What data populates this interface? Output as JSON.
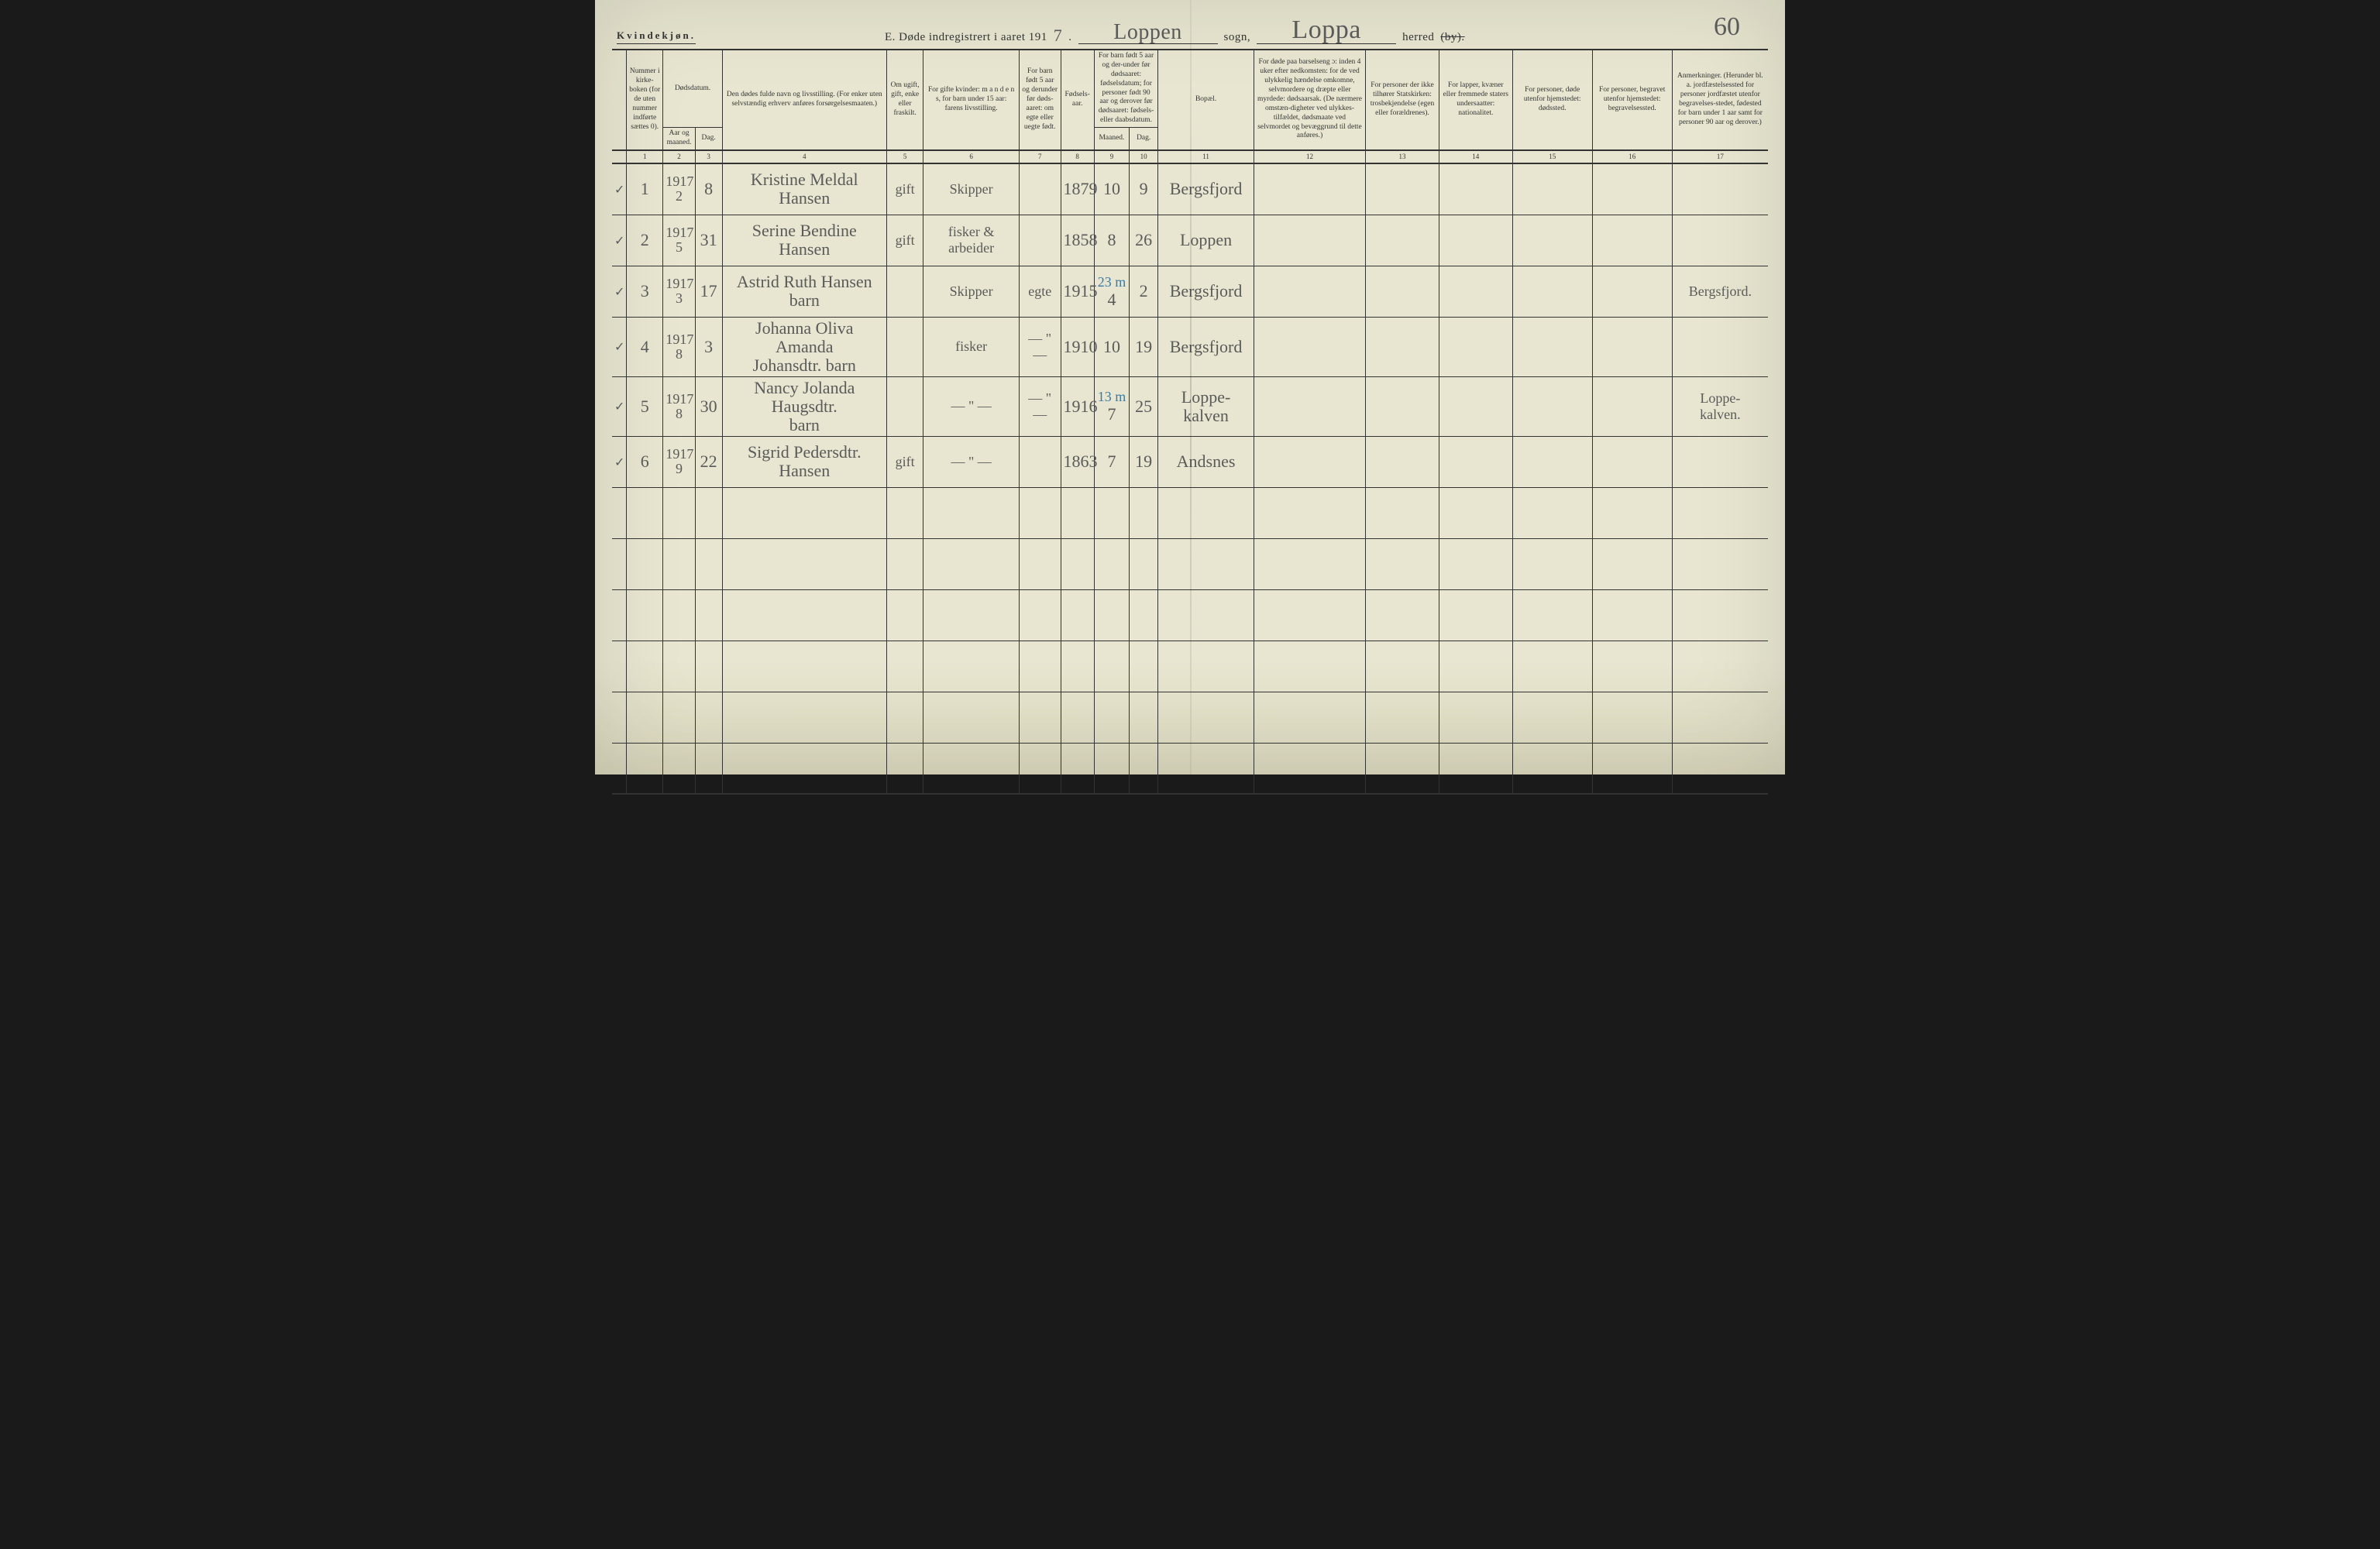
{
  "page": {
    "gender_heading": "Kvindekjøn.",
    "title_prefix": "E.  Døde indregistrert i aaret 191",
    "year_suffix_hw": "7",
    "period": ".",
    "sogn_label": "sogn,",
    "herred_label": "herred",
    "by_struck": "(by).",
    "sogn_value_hw": "Loppen",
    "herred_value_hw": "Loppa",
    "page_number_hw": "60",
    "background_color": "#e8e6d0",
    "rule_color": "#333333",
    "handwriting_color": "#5a5a5a",
    "blue_pencil_color": "#3a7ba5"
  },
  "columns": {
    "h1": "Nummer i kirke-boken (for de uten nummer indførte sættes 0).",
    "h2_top": "Dødsdatum.",
    "h2a": "Aar og maaned.",
    "h2b": "Dag.",
    "h4": "Den dødes fulde navn og livsstilling.\n(For enker uten selvstændig erhverv anføres forsørgelsesmaaten.)",
    "h5": "Om ugift, gift, enke eller fraskilt.",
    "h6": "For gifte kvinder: m a n d e n s, for barn under 15 aar: farens livsstilling.",
    "h7": "For barn født 5 aar og derunder før døds-aaret: om egte eller uegte født.",
    "h8": "Fødsels-aar.",
    "h9_top": "For barn født 5 aar og der-under før dødsaaret: fødselsdatum; for personer født 90 aar og derover før dødsaaret: fødsels- eller daabsdatum.",
    "h9a": "Maaned.",
    "h9b": "Dag.",
    "h11": "Bopæl.",
    "h12": "For døde paa barselseng ɔ: inden 4 uker efter nedkomsten: for de ved ulykkelig hændelse omkomne, selvmordere og dræpte eller myrdede: dødsaarsak. (De nærmere omstæn-digheter ved ulykkes-tilfældet, dødsmaate ved selvmordet og bevæggrund til dette anføres.)",
    "h13": "For personer der ikke tilhører Statskirken: trosbekjendelse (egen eller forældrenes).",
    "h14": "For lapper, kvæner eller fremmede staters undersaatter: nationalitet.",
    "h15": "For personer, døde utenfor hjemstedet: dødssted.",
    "h16": "For personer, begravet utenfor hjemstedet: begravelsessted.",
    "h17": "Anmerkninger.\n(Herunder bl. a. jordfæstelsessted for personer jordfæstet utenfor begravelses-stedet, fødested for barn under 1 aar samt for personer 90 aar og derover.)"
  },
  "colnums": [
    "1",
    "2",
    "3",
    "4",
    "5",
    "6",
    "7",
    "8",
    "9",
    "10",
    "11",
    "12",
    "13",
    "14",
    "15",
    "16",
    "17"
  ],
  "rows": [
    {
      "check": "✓",
      "num": "1",
      "year_month": "1917\n2",
      "day": "8",
      "name": "Kristine Meldal Hansen",
      "status": "gift",
      "spouse": "Skipper",
      "legit": "",
      "birth_year": "1879",
      "bm": "10",
      "bd": "9",
      "residence": "Bergsfjord",
      "col17": ""
    },
    {
      "check": "✓",
      "num": "2",
      "year_month": "1917\n5",
      "day": "31",
      "name": "Serine Bendine Hansen",
      "status": "gift",
      "spouse": "fisker & arbeider",
      "legit": "",
      "birth_year": "1858",
      "bm": "8",
      "bd": "26",
      "residence": "Loppen",
      "col17": ""
    },
    {
      "check": "✓",
      "num": "3",
      "year_month": "1917\n3",
      "day": "17",
      "name": "Astrid Ruth Hansen\nbarn",
      "status": "",
      "spouse": "Skipper",
      "legit": "egte",
      "birth_year": "1915",
      "bm": "4",
      "bm_note": "23 m",
      "bd": "2",
      "residence": "Bergsfjord",
      "col17": "Bergsfjord."
    },
    {
      "check": "✓",
      "num": "4",
      "year_month": "1917\n8",
      "day": "3",
      "name": "Johanna Oliva Amanda\nJohansdtr. barn",
      "status": "",
      "spouse": "fisker",
      "legit": "— \" —",
      "birth_year": "1910",
      "bm": "10",
      "bd": "19",
      "residence": "Bergsfjord",
      "col17": ""
    },
    {
      "check": "✓",
      "num": "5",
      "year_month": "1917\n8",
      "day": "30",
      "name": "Nancy Jolanda Haugsdtr.\nbarn",
      "status": "",
      "spouse": "— \" —",
      "legit": "— \" —",
      "birth_year": "1916",
      "bm": "7",
      "bm_note": "13 m",
      "bd": "25",
      "residence": "Loppe-\nkalven",
      "col17": "Loppe-\nkalven."
    },
    {
      "check": "✓",
      "num": "6",
      "year_month": "1917\n9",
      "day": "22",
      "name": "Sigrid Pedersdtr.\nHansen",
      "status": "gift",
      "spouse": "— \" —",
      "legit": "",
      "birth_year": "1863",
      "bm": "7",
      "bd": "19",
      "residence": "Andsnes",
      "col17": ""
    }
  ],
  "blank_rows": 6
}
